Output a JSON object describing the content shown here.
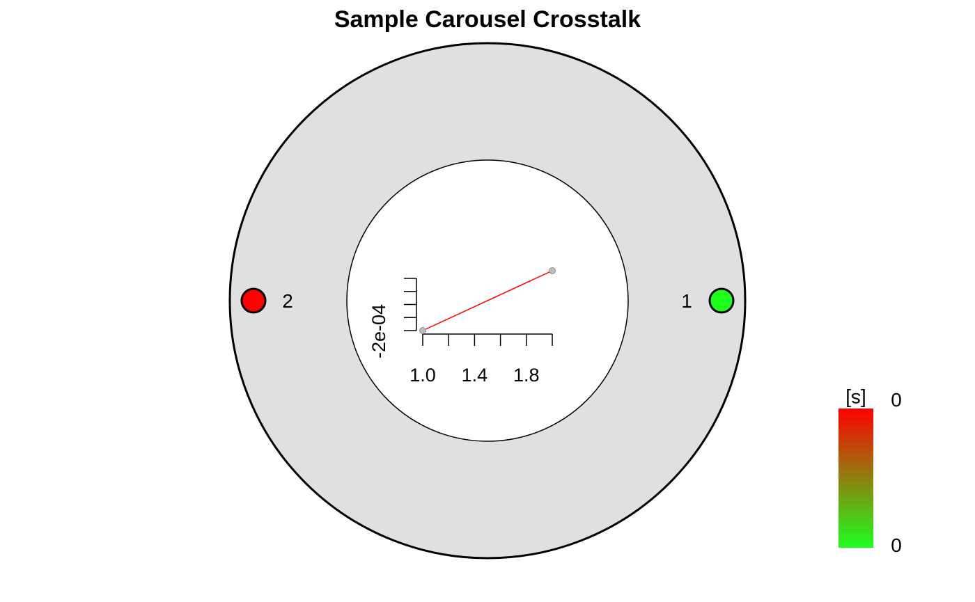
{
  "chart_data": {
    "type": "carousel",
    "title": "Sample Carousel Crosstalk",
    "samples": [
      {
        "label": "1",
        "color": "#1EFF1E"
      },
      {
        "label": "2",
        "color": "#FF0000"
      }
    ],
    "inset": {
      "type": "line",
      "x": [
        1.0,
        2.0
      ],
      "y": [
        -0.0002,
        0.0003
      ],
      "x_ticks": [
        "1.0",
        "1.4",
        "1.8"
      ],
      "y_tick_label": "-2e-04",
      "line_color": "#FF0000"
    },
    "legend": {
      "title": "[s]",
      "top_label": "0",
      "bottom_label": "0",
      "colors": [
        "#FF0000",
        "#1EFF1E"
      ]
    }
  }
}
